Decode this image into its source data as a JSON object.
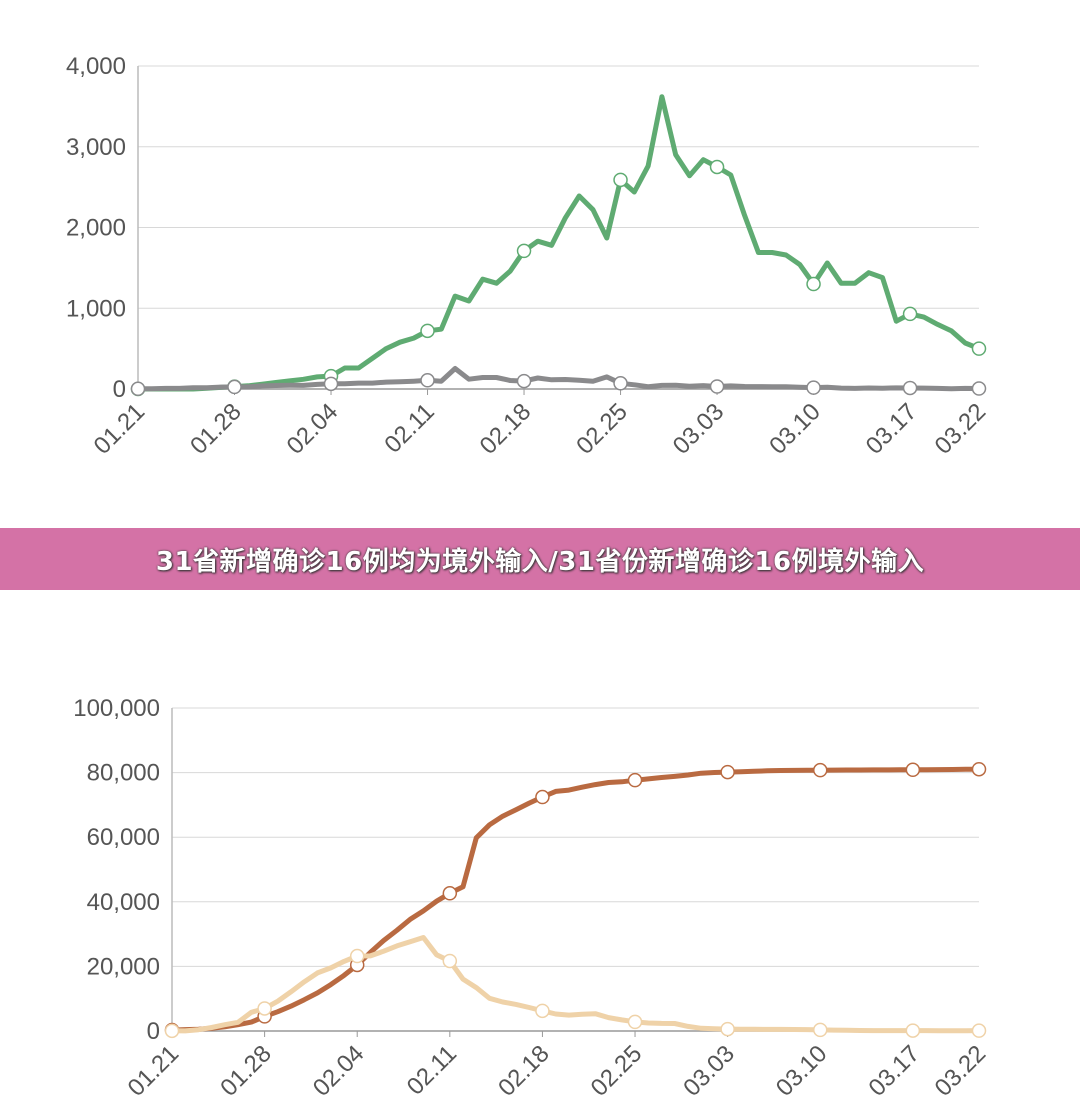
{
  "chart_data": [
    {
      "type": "line",
      "categories": [
        "01.21",
        null,
        null,
        null,
        null,
        null,
        null,
        "01.28",
        null,
        null,
        null,
        null,
        null,
        null,
        "02.04",
        null,
        null,
        null,
        null,
        null,
        null,
        "02.11",
        null,
        null,
        null,
        null,
        null,
        null,
        "02.18",
        null,
        null,
        null,
        null,
        null,
        null,
        "02.25",
        null,
        null,
        null,
        null,
        null,
        null,
        "03.03",
        null,
        null,
        null,
        null,
        null,
        null,
        "03.10",
        null,
        null,
        null,
        null,
        null,
        null,
        "03.17",
        null,
        null,
        null,
        null,
        "03.22"
      ],
      "series": [
        {
          "color": "#5fab72",
          "values": [
            0,
            0,
            0,
            0,
            0,
            10,
            20,
            30,
            40,
            60,
            80,
            100,
            120,
            150,
            160,
            260,
            260,
            380,
            500,
            580,
            630,
            720,
            740,
            1150,
            1090,
            1360,
            1310,
            1460,
            1710,
            1830,
            1780,
            2120,
            2390,
            2220,
            1870,
            2590,
            2440,
            2760,
            3620,
            2900,
            2640,
            2840,
            2750,
            2650,
            2150,
            1690,
            1690,
            1660,
            1540,
            1300,
            1560,
            1310,
            1310,
            1440,
            1380,
            840,
            930,
            890,
            800,
            720,
            570,
            500
          ]
        },
        {
          "color": "#8a8a8c",
          "values": [
            3,
            3,
            8,
            8,
            16,
            15,
            24,
            26,
            26,
            38,
            43,
            46,
            45,
            57,
            64,
            65,
            73,
            73,
            86,
            89,
            97,
            108,
            97,
            254,
            121,
            143,
            142,
            105,
            98,
            136,
            114,
            118,
            109,
            97,
            150,
            71,
            52,
            29,
            44,
            47,
            35,
            42,
            31,
            38,
            31,
            30,
            28,
            27,
            22,
            17,
            22,
            11,
            7,
            13,
            10,
            14,
            13,
            11,
            8,
            3,
            7,
            6
          ]
        }
      ],
      "ylim": [
        0,
        4000
      ],
      "yticks": [
        0,
        {
          "value": 1000,
          "label": "1,000"
        },
        {
          "value": 2000,
          "label": "2,000"
        },
        {
          "value": 3000,
          "label": "3,000"
        },
        {
          "value": 4000,
          "label": "4,000"
        }
      ],
      "grid": true
    },
    {
      "type": "line",
      "categories": [
        "01.21",
        null,
        null,
        null,
        null,
        null,
        null,
        "01.28",
        null,
        null,
        null,
        null,
        null,
        null,
        "02.04",
        null,
        null,
        null,
        null,
        null,
        null,
        "02.11",
        null,
        null,
        null,
        null,
        null,
        null,
        "02.18",
        null,
        null,
        null,
        null,
        null,
        null,
        "02.25",
        null,
        null,
        null,
        null,
        null,
        null,
        "03.03",
        null,
        null,
        null,
        null,
        null,
        null,
        "03.10",
        null,
        null,
        null,
        null,
        null,
        null,
        "03.17",
        null,
        null,
        null,
        null,
        "03.22"
      ],
      "series": [
        {
          "color": "#b96a41",
          "values": [
            291,
            440,
            571,
            830,
            1287,
            1975,
            2744,
            4515,
            5974,
            7711,
            9692,
            11791,
            14380,
            17205,
            20438,
            24324,
            28018,
            31161,
            34546,
            37198,
            40171,
            42638,
            44653,
            59804,
            63851,
            66492,
            68500,
            70548,
            72436,
            74185,
            74576,
            75465,
            76288,
            76936,
            77150,
            77658,
            78064,
            78497,
            78824,
            79251,
            79824,
            80026,
            80151,
            80270,
            80409,
            80552,
            80651,
            80695,
            80735,
            80754,
            80778,
            80793,
            80813,
            80824,
            80844,
            80860,
            80881,
            80894,
            80928,
            80967,
            81008,
            81054
          ]
        },
        {
          "color": "#efd2a8",
          "values": [
            54,
            37,
            393,
            1072,
            1965,
            2684,
            5794,
            6973,
            9239,
            12167,
            15238,
            17988,
            19544,
            21558,
            23214,
            23260,
            24702,
            26359,
            27657,
            28942,
            23589,
            21675,
            16067,
            13435,
            10109,
            8969,
            8228,
            7264,
            6242,
            5248,
            4922,
            5206,
            5365,
            4148,
            3434,
            2824,
            2491,
            2358,
            2308,
            1418,
            851,
            715,
            587,
            520,
            522,
            482,
            502,
            458,
            421,
            349,
            285,
            253,
            147,
            115,
            113,
            134,
            128,
            119,
            105,
            104,
            106,
            115
          ]
        }
      ],
      "ylim": [
        0,
        100000
      ],
      "yticks": [
        0,
        {
          "value": 20000,
          "label": "20,000"
        },
        {
          "value": 40000,
          "label": "40,000"
        },
        {
          "value": 60000,
          "label": "60,000"
        },
        {
          "value": 80000,
          "label": "80,000"
        },
        {
          "value": 100000,
          "label": "100,000"
        }
      ],
      "grid": true
    }
  ],
  "banner": {
    "text": "31省新增确诊16例均为境外输入/31省份新增确诊16例境外输入"
  }
}
